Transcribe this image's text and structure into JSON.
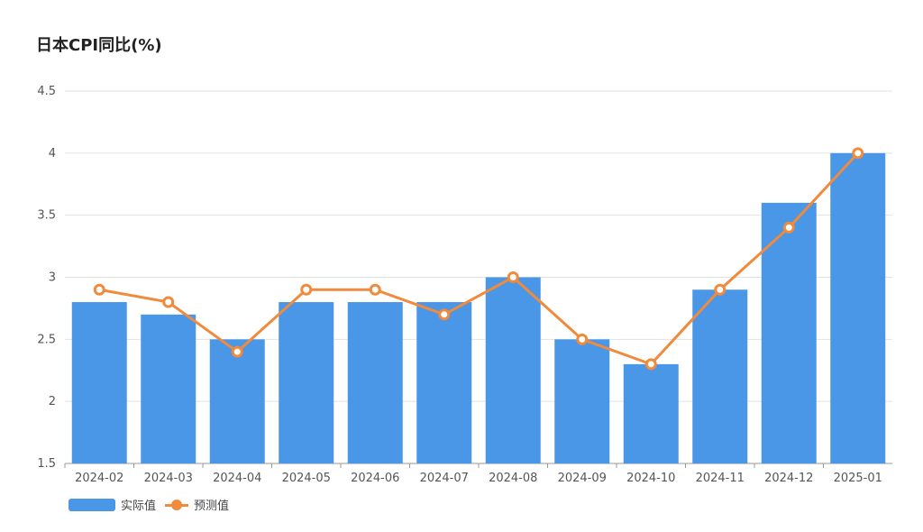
{
  "chart_data": {
    "type": "bar",
    "title": "日本CPI同比(%)",
    "categories": [
      "2024-02",
      "2024-03",
      "2024-04",
      "2024-05",
      "2024-06",
      "2024-07",
      "2024-08",
      "2024-09",
      "2024-10",
      "2024-11",
      "2024-12",
      "2025-01"
    ],
    "series": [
      {
        "name": "实际值",
        "type": "bar",
        "color": "#4a97e8",
        "values": [
          2.8,
          2.7,
          2.5,
          2.8,
          2.8,
          2.8,
          3.0,
          2.5,
          2.3,
          2.9,
          3.6,
          4.0
        ]
      },
      {
        "name": "预测值",
        "type": "line",
        "color": "#f08a3c",
        "values": [
          2.9,
          2.8,
          2.4,
          2.9,
          2.9,
          2.7,
          3.0,
          2.5,
          2.3,
          2.9,
          3.4,
          4.0
        ]
      }
    ],
    "ylim": [
      1.5,
      4.5
    ],
    "yticks": [
      "1.5",
      "2",
      "2.5",
      "3",
      "3.5",
      "4",
      "4.5"
    ],
    "grid": true,
    "legend_position": "bottom-left"
  }
}
